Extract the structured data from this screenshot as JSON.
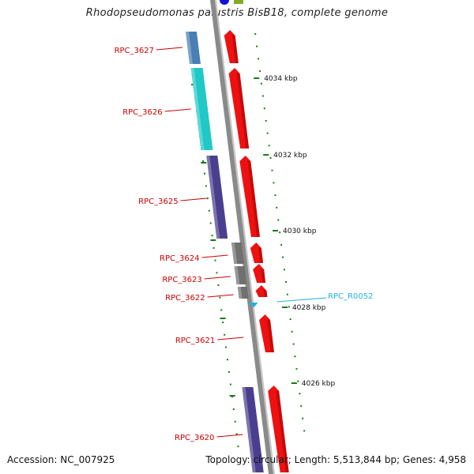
{
  "title": "Rhodopseudomonas palustris BisB18, complete genome",
  "accession": "Accession: NC_007925",
  "summary": "Topology: circular; Length: 5,513,844 bp; Genes: 4,958",
  "colors": {
    "backbone": "#8a8a8a",
    "forward_gene": "#ee1111",
    "tick": "#1a7a1a",
    "gene_label": "#cc0000",
    "rna_label": "#22b4e0"
  },
  "kbp_labels": [
    "4034 kbp",
    "4032 kbp",
    "4030 kbp",
    "4028 kbp",
    "4026 kbp"
  ],
  "genes": [
    {
      "name": "RPC_3627",
      "strand": "reverse",
      "color": "#4a7fb5"
    },
    {
      "name": "RPC_3626",
      "strand": "reverse",
      "color": "#20c8c8"
    },
    {
      "name": "RPC_3625",
      "strand": "reverse",
      "color": "#4a3f8f"
    },
    {
      "name": "RPC_3624",
      "strand": "reverse",
      "color": "#707070"
    },
    {
      "name": "RPC_3623",
      "strand": "reverse",
      "color": "#707070"
    },
    {
      "name": "RPC_3622",
      "strand": "reverse",
      "color": "#707070"
    },
    {
      "name": "RPC_3621",
      "strand": "forward",
      "color": "#ee1111"
    },
    {
      "name": "RPC_3620",
      "strand": "reverse",
      "color": "#4a3f8f"
    }
  ],
  "rna": [
    {
      "name": "RPC_R0052",
      "color": "#22b4e0"
    }
  ]
}
